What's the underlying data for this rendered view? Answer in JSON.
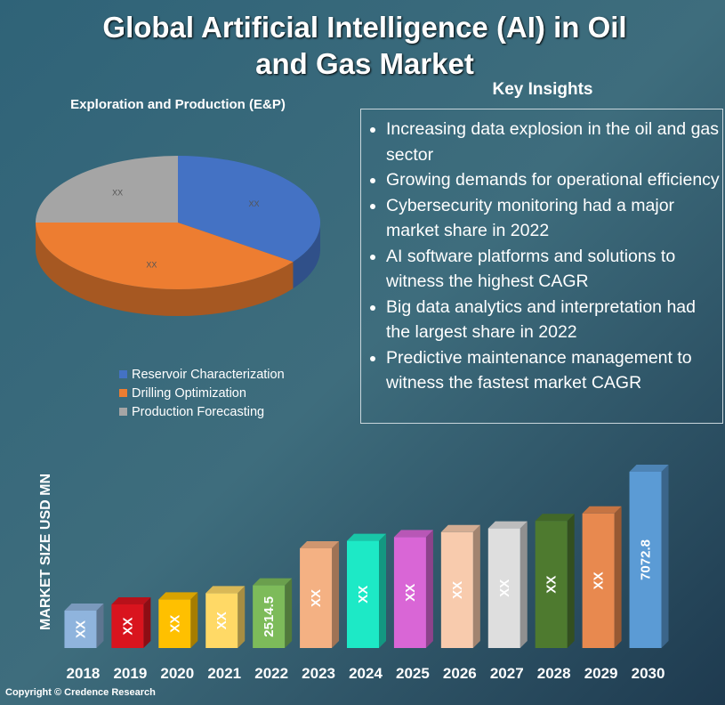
{
  "title": "Global Artificial Intelligence (AI) in Oil and Gas Market",
  "insights_title": "Key Insights",
  "insights": [
    "Increasing data explosion in the oil and gas sector",
    "Growing demands for operational efficiency",
    "Cybersecurity monitoring had a major market share in 2022",
    "AI software platforms and solutions to witness the highest CAGR",
    "Big data analytics and interpretation had the largest share in 2022",
    "Predictive maintenance management to witness the fastest market CAGR"
  ],
  "copyright": "Copyright © Credence Research",
  "chart_data": [
    {
      "type": "pie",
      "title": "Exploration and Production (E&P)",
      "categories": [
        "Reservoir Characterization",
        "Drilling Optimization",
        "Production Forecasting"
      ],
      "values": [
        35,
        40,
        25
      ],
      "value_labels": [
        "XX",
        "XX",
        "XX"
      ],
      "colors": [
        "#4472c4",
        "#ed7d31",
        "#a5a5a5"
      ]
    },
    {
      "type": "bar",
      "y_label": "MARKET SIZE USD MN",
      "categories": [
        "2018",
        "2019",
        "2020",
        "2021",
        "2022",
        "2023",
        "2024",
        "2025",
        "2026",
        "2027",
        "2028",
        "2029",
        "2030"
      ],
      "values": [
        1500,
        1750,
        1950,
        2200,
        2514.5,
        4000,
        4300,
        4450,
        4650,
        4800,
        5100,
        5400,
        7072.8
      ],
      "value_labels": [
        "XX",
        "XX",
        "XX",
        "XX",
        "2514.5",
        "XX",
        "XX",
        "XX",
        "XX",
        "XX",
        "XX",
        "XX",
        "7072.8"
      ],
      "colors": [
        "#8fb4dd",
        "#d9141e",
        "#ffc000",
        "#ffd966",
        "#7dbb5a",
        "#f4b183",
        "#1de9c6",
        "#d966d6",
        "#f8cbad",
        "#dedede",
        "#4e7a2f",
        "#e8894f",
        "#5b9bd5"
      ],
      "ylim": [
        0,
        7500
      ]
    }
  ]
}
